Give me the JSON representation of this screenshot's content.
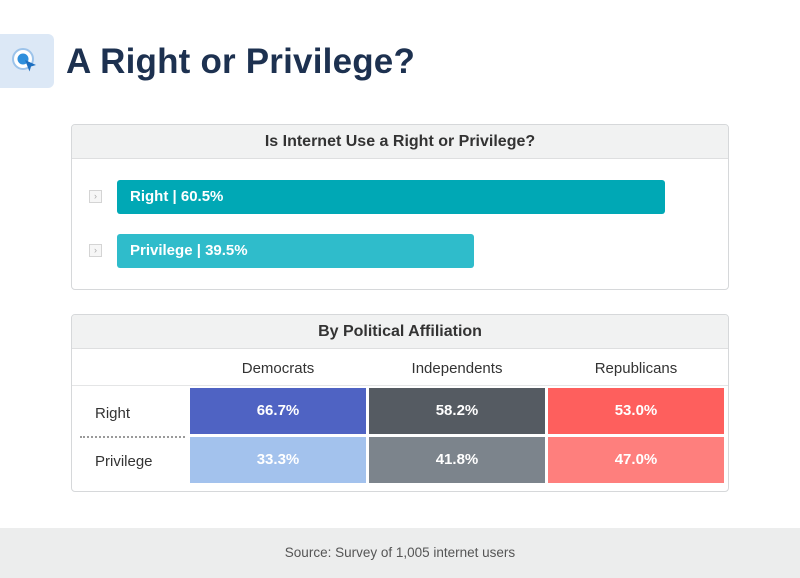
{
  "header": {
    "title": "A Right or Privilege?",
    "icon": "magnifier-cursor-icon"
  },
  "chart_data": [
    {
      "type": "bar",
      "orientation": "horizontal",
      "title": "Is Internet Use a Right or Privilege?",
      "categories": [
        "Right",
        "Privilege"
      ],
      "values": [
        60.5,
        39.5
      ],
      "labels": [
        "Right | 60.5%",
        "Privilege | 39.5%"
      ],
      "colors": [
        "#00a8b5",
        "#2fbccb"
      ],
      "unit": "%"
    },
    {
      "type": "table",
      "title": "By Political Affiliation",
      "columns": [
        "Democrats",
        "Independents",
        "Republicans"
      ],
      "rows": [
        "Right",
        "Privilege"
      ],
      "values": [
        [
          "66.7%",
          "58.2%",
          "53.0%"
        ],
        [
          "33.3%",
          "41.8%",
          "47.0%"
        ]
      ],
      "colors": [
        [
          "#4f63c3",
          "#555b62",
          "#fe5f5d"
        ],
        [
          "#a3c2ed",
          "#7c848c",
          "#fe7f7d"
        ]
      ]
    }
  ],
  "footer": {
    "source": "Source: Survey of 1,005 internet users"
  }
}
